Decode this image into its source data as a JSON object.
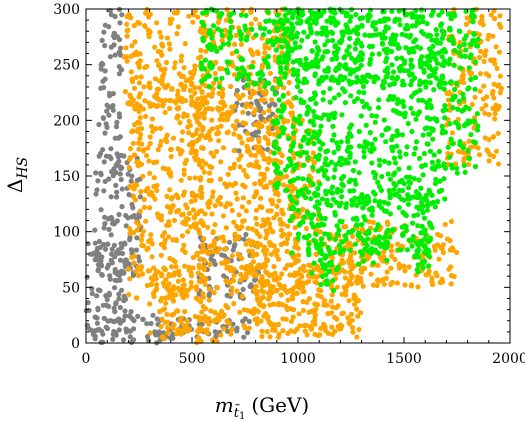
{
  "chart_data": {
    "type": "scatter",
    "title": "",
    "xlabel": "m_{t̃1} (GeV)",
    "xlabel_parts": {
      "symbol": "m",
      "subscript": "t̃",
      "sub_index": "1",
      "unit": "(GeV)"
    },
    "ylabel": "Δ_HS",
    "ylabel_parts": {
      "symbol": "Δ",
      "subscript": "HS"
    },
    "xlim": [
      0,
      2000
    ],
    "ylim": [
      0,
      300
    ],
    "x_ticks": [
      0,
      500,
      1000,
      1500,
      2000
    ],
    "y_ticks": [
      0,
      50,
      100,
      150,
      200,
      250,
      300
    ],
    "x_tick_labels": [
      "0",
      "500",
      "1000",
      "1500",
      "2000"
    ],
    "y_tick_labels": [
      "0",
      "50",
      "100",
      "150",
      "200",
      "250",
      "300"
    ],
    "grid": false,
    "legend": "none",
    "series": [
      {
        "color": "#808080",
        "regions": [
          {
            "x": [
              0,
              500
            ],
            "y": [
              0,
              25
            ]
          },
          {
            "x": [
              0,
              230
            ],
            "y": [
              0,
              90
            ]
          },
          {
            "x": [
              40,
              260
            ],
            "y": [
              60,
              170
            ]
          },
          {
            "x": [
              60,
              170
            ],
            "y": [
              150,
              300
            ]
          },
          {
            "x": [
              450,
              780
            ],
            "y": [
              5,
              25
            ]
          },
          {
            "x": [
              530,
              820
            ],
            "y": [
              40,
              100
            ]
          },
          {
            "x": [
              700,
              900
            ],
            "y": [
              170,
              240
            ]
          }
        ]
      },
      {
        "color": "#ffa500",
        "regions": [
          {
            "x": [
              180,
              580
            ],
            "y": [
              210,
              300
            ]
          },
          {
            "x": [
              200,
              560
            ],
            "y": [
              40,
              240
            ]
          },
          {
            "x": [
              300,
              1300
            ],
            "y": [
              5,
              70
            ]
          },
          {
            "x": [
              350,
              620
            ],
            "y": [
              0,
              30
            ]
          },
          {
            "x": [
              500,
              1000
            ],
            "y": [
              60,
              230
            ]
          },
          {
            "x": [
              580,
              960
            ],
            "y": [
              230,
              300
            ]
          },
          {
            "x": [
              800,
              1100
            ],
            "y": [
              10,
              200
            ]
          },
          {
            "x": [
              1200,
              1750
            ],
            "y": [
              50,
              110
            ]
          },
          {
            "x": [
              1700,
              1960
            ],
            "y": [
              160,
              300
            ]
          },
          {
            "x": [
              1100,
              1250
            ],
            "y": [
              40,
              100
            ]
          }
        ]
      },
      {
        "color": "#00ee00",
        "regions": [
          {
            "x": [
              540,
              1700
            ],
            "y": [
              230,
              300
            ]
          },
          {
            "x": [
              880,
              1700
            ],
            "y": [
              120,
              300
            ]
          },
          {
            "x": [
              960,
              1640
            ],
            "y": [
              80,
              140
            ]
          },
          {
            "x": [
              1050,
              1200
            ],
            "y": [
              45,
              100
            ]
          },
          {
            "x": [
              1280,
              1420
            ],
            "y": [
              70,
              100
            ]
          },
          {
            "x": [
              1550,
              1620
            ],
            "y": [
              60,
              100
            ]
          },
          {
            "x": [
              1680,
              1850
            ],
            "y": [
              150,
              300
            ]
          }
        ]
      }
    ]
  }
}
